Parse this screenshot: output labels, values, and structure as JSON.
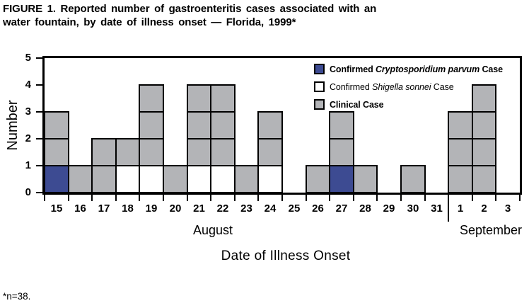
{
  "title": {
    "line1": "FIGURE 1. Reported number of gastroenteritis cases associated with an",
    "line2": "water fountain, by date of illness onset — Florida, 1999*"
  },
  "footnote": "*n=38.",
  "chart_data": {
    "type": "bar",
    "subtype": "stacked-unit-box-epidemic-curve",
    "title": "FIGURE 1. Reported number of gastroenteritis cases associated with an water fountain, by date of illness onset — Florida, 1999*",
    "xlabel": "Date of Illness Onset",
    "ylabel": "Number",
    "ylim": [
      0,
      5
    ],
    "yticks": [
      0,
      1,
      2,
      3,
      4,
      5
    ],
    "grid": false,
    "legend_position": "top-right-inside",
    "categories": [
      "15",
      "16",
      "17",
      "18",
      "19",
      "20",
      "21",
      "22",
      "23",
      "24",
      "25",
      "26",
      "27",
      "28",
      "29",
      "30",
      "31",
      "1",
      "2",
      "3"
    ],
    "month_groups": [
      {
        "label": "August",
        "start_index": 0,
        "end_index": 16
      },
      {
        "label": "September",
        "start_index": 17,
        "end_index": 19
      }
    ],
    "total_cases": 38,
    "series": [
      {
        "name": "Confirmed Cryptosporidium parvum Case",
        "color": "#3d4b92",
        "legend_bold": true,
        "legend_segments": [
          {
            "text": "Confirmed ",
            "italic": false
          },
          {
            "text": "Cryptosporidium parvum",
            "italic": true
          },
          {
            "text": " Case",
            "italic": false
          }
        ],
        "values": [
          1,
          0,
          0,
          0,
          0,
          0,
          0,
          0,
          0,
          0,
          0,
          0,
          1,
          0,
          0,
          0,
          0,
          0,
          0,
          0
        ]
      },
      {
        "name": "Confirmed Shigella sonnei Case",
        "color": "#ffffff",
        "legend_bold": false,
        "legend_segments": [
          {
            "text": "Confirmed ",
            "italic": false
          },
          {
            "text": "Shigella sonnei",
            "italic": true
          },
          {
            "text": " Case",
            "italic": false
          }
        ],
        "values": [
          0,
          0,
          0,
          1,
          1,
          0,
          1,
          1,
          0,
          1,
          0,
          0,
          0,
          0,
          0,
          0,
          0,
          0,
          0,
          0
        ]
      },
      {
        "name": "Clinical Case",
        "color": "#b3b4b7",
        "legend_bold": true,
        "legend_segments": [
          {
            "text": "Clinical Case",
            "italic": false
          }
        ],
        "values": [
          2,
          1,
          2,
          1,
          3,
          1,
          3,
          3,
          1,
          2,
          0,
          1,
          2,
          1,
          0,
          1,
          0,
          3,
          4,
          0
        ]
      }
    ]
  }
}
